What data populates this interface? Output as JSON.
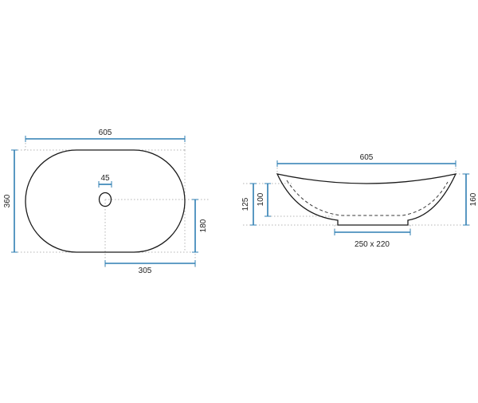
{
  "colors": {
    "outline": "#1a1a1a",
    "dimension": "#2f7fb3",
    "guide": "#b5b5b5",
    "hidden_line": "#3a3a3a"
  },
  "top_view": {
    "width_label": "605",
    "height_label": "360",
    "drain_label": "45",
    "drain_offset_y_label": "180",
    "drain_offset_x_label": "305"
  },
  "side_view": {
    "width_label": "605",
    "inner_depth_label": "100",
    "depth_label": "125",
    "total_height_label": "160",
    "base_label": "250 x 220"
  }
}
